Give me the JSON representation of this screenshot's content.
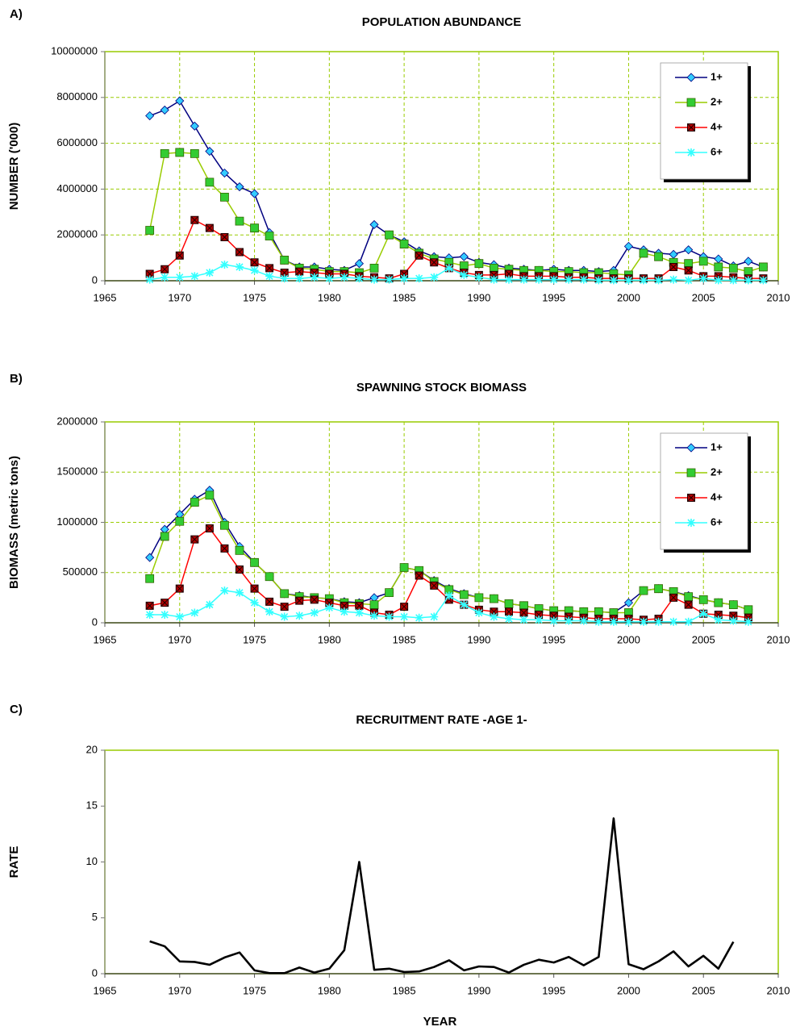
{
  "chart_data": [
    {
      "type": "line",
      "panel_label": "A)",
      "title": "POPULATION ABUNDANCE",
      "y_label": "NUMBER ('000)",
      "x": [
        1968,
        1969,
        1970,
        1971,
        1972,
        1973,
        1974,
        1975,
        1976,
        1977,
        1978,
        1979,
        1980,
        1981,
        1982,
        1983,
        1984,
        1985,
        1986,
        1987,
        1988,
        1989,
        1990,
        1991,
        1992,
        1993,
        1994,
        1995,
        1996,
        1997,
        1998,
        1999,
        2000,
        2001,
        2002,
        2003,
        2004,
        2005,
        2006,
        2007,
        2008,
        2009
      ],
      "xlim": [
        1965,
        2010
      ],
      "xticks": [
        1965,
        1970,
        1975,
        1980,
        1985,
        1990,
        1995,
        2000,
        2005,
        2010
      ],
      "ylim": [
        0,
        10000000
      ],
      "yticks": [
        0,
        2000000,
        4000000,
        6000000,
        8000000,
        10000000
      ],
      "grid": true,
      "legend": "upper right",
      "series": [
        {
          "name": "1+",
          "color": "#000080",
          "marker": "diamond",
          "marker_color": "#33ccff",
          "values": [
            7200000,
            7450000,
            7850000,
            6750000,
            5650000,
            4700000,
            4100000,
            3800000,
            2100000,
            900000,
            600000,
            600000,
            500000,
            450000,
            750000,
            2450000,
            2000000,
            1700000,
            1300000,
            1050000,
            1000000,
            1050000,
            800000,
            700000,
            550000,
            500000,
            450000,
            500000,
            450000,
            450000,
            400000,
            450000,
            1500000,
            1350000,
            1200000,
            1150000,
            1350000,
            1050000,
            950000,
            650000,
            850000,
            600000
          ]
        },
        {
          "name": "2+",
          "color": "#99cc00",
          "marker": "square",
          "marker_color": "#33cc33",
          "values": [
            2200000,
            5550000,
            5600000,
            5550000,
            4300000,
            3650000,
            2600000,
            2300000,
            1950000,
            900000,
            550000,
            500000,
            400000,
            400000,
            350000,
            550000,
            2000000,
            1600000,
            1200000,
            950000,
            800000,
            650000,
            750000,
            550000,
            500000,
            450000,
            450000,
            400000,
            400000,
            350000,
            350000,
            300000,
            250000,
            1200000,
            1050000,
            800000,
            750000,
            850000,
            600000,
            550000,
            400000,
            600000
          ]
        },
        {
          "name": "4+",
          "color": "#ff0000",
          "marker": "star",
          "marker_color": "#b30000",
          "values": [
            300000,
            500000,
            1100000,
            2650000,
            2300000,
            1900000,
            1250000,
            800000,
            550000,
            350000,
            400000,
            350000,
            300000,
            300000,
            200000,
            150000,
            100000,
            300000,
            1100000,
            800000,
            550000,
            350000,
            250000,
            250000,
            300000,
            200000,
            200000,
            200000,
            150000,
            150000,
            100000,
            100000,
            100000,
            100000,
            100000,
            600000,
            450000,
            200000,
            200000,
            150000,
            100000,
            100000
          ]
        },
        {
          "name": "6+",
          "color": "#33ffff",
          "marker": "asterisk",
          "marker_color": "#33ffff",
          "values": [
            50000,
            150000,
            150000,
            200000,
            350000,
            700000,
            600000,
            450000,
            200000,
            100000,
            100000,
            150000,
            100000,
            150000,
            100000,
            50000,
            50000,
            100000,
            100000,
            150000,
            550000,
            250000,
            150000,
            50000,
            50000,
            50000,
            50000,
            50000,
            50000,
            50000,
            20000,
            20000,
            20000,
            20000,
            20000,
            50000,
            20000,
            100000,
            20000,
            20000,
            20000,
            20000
          ]
        }
      ]
    },
    {
      "type": "line",
      "panel_label": "B)",
      "title": "SPAWNING STOCK BIOMASS",
      "y_label": "BIOMASS (metric tons)",
      "x": [
        1968,
        1969,
        1970,
        1971,
        1972,
        1973,
        1974,
        1975,
        1976,
        1977,
        1978,
        1979,
        1980,
        1981,
        1982,
        1983,
        1984,
        1985,
        1986,
        1987,
        1988,
        1989,
        1990,
        1991,
        1992,
        1993,
        1994,
        1995,
        1996,
        1997,
        1998,
        1999,
        2000,
        2001,
        2002,
        2003,
        2004,
        2005,
        2006,
        2007,
        2008
      ],
      "xlim": [
        1965,
        2010
      ],
      "xticks": [
        1965,
        1970,
        1975,
        1980,
        1985,
        1990,
        1995,
        2000,
        2005,
        2010
      ],
      "ylim": [
        0,
        2000000
      ],
      "yticks": [
        0,
        500000,
        1000000,
        1500000,
        2000000
      ],
      "grid": true,
      "legend": "upper right",
      "series": [
        {
          "name": "1+",
          "color": "#000080",
          "marker": "diamond",
          "marker_color": "#33ccff",
          "values": [
            650000,
            930000,
            1080000,
            1230000,
            1320000,
            1000000,
            760000,
            600000,
            460000,
            290000,
            270000,
            250000,
            240000,
            210000,
            200000,
            250000,
            300000,
            550000,
            520000,
            420000,
            340000,
            290000,
            250000,
            240000,
            190000,
            170000,
            140000,
            120000,
            120000,
            110000,
            110000,
            100000,
            200000,
            320000,
            340000,
            310000,
            270000,
            230000,
            200000,
            180000,
            130000
          ]
        },
        {
          "name": "2+",
          "color": "#99cc00",
          "marker": "square",
          "marker_color": "#33cc33",
          "values": [
            440000,
            860000,
            1010000,
            1200000,
            1270000,
            970000,
            720000,
            600000,
            460000,
            290000,
            260000,
            250000,
            240000,
            200000,
            190000,
            180000,
            300000,
            550000,
            520000,
            410000,
            330000,
            280000,
            250000,
            240000,
            190000,
            170000,
            140000,
            120000,
            120000,
            110000,
            110000,
            100000,
            100000,
            320000,
            340000,
            310000,
            260000,
            230000,
            200000,
            180000,
            130000
          ]
        },
        {
          "name": "4+",
          "color": "#ff0000",
          "marker": "star",
          "marker_color": "#b30000",
          "values": [
            170000,
            200000,
            340000,
            830000,
            940000,
            740000,
            530000,
            340000,
            210000,
            160000,
            220000,
            230000,
            200000,
            170000,
            170000,
            100000,
            80000,
            160000,
            470000,
            370000,
            230000,
            180000,
            130000,
            110000,
            110000,
            100000,
            80000,
            70000,
            60000,
            50000,
            40000,
            40000,
            40000,
            30000,
            40000,
            250000,
            180000,
            90000,
            80000,
            70000,
            50000
          ]
        },
        {
          "name": "6+",
          "color": "#33ffff",
          "marker": "asterisk",
          "marker_color": "#33ffff",
          "values": [
            80000,
            80000,
            60000,
            100000,
            180000,
            320000,
            300000,
            200000,
            110000,
            60000,
            70000,
            100000,
            150000,
            110000,
            100000,
            70000,
            60000,
            60000,
            50000,
            60000,
            270000,
            180000,
            100000,
            60000,
            40000,
            30000,
            30000,
            20000,
            20000,
            20000,
            10000,
            10000,
            10000,
            10000,
            10000,
            10000,
            10000,
            90000,
            30000,
            20000,
            10000
          ]
        }
      ]
    },
    {
      "type": "line",
      "panel_label": "C)",
      "title": "RECRUITMENT RATE  -AGE 1-",
      "y_label": "RATE",
      "x_label": "YEAR",
      "x": [
        1968,
        1969,
        1970,
        1971,
        1972,
        1973,
        1974,
        1975,
        1976,
        1977,
        1978,
        1979,
        1980,
        1981,
        1982,
        1983,
        1984,
        1985,
        1986,
        1987,
        1988,
        1989,
        1990,
        1991,
        1992,
        1993,
        1994,
        1995,
        1996,
        1997,
        1998,
        1999,
        2000,
        2001,
        2002,
        2003,
        2004,
        2005,
        2006,
        2007
      ],
      "xlim": [
        1965,
        2010
      ],
      "xticks": [
        1965,
        1970,
        1975,
        1980,
        1985,
        1990,
        1995,
        2000,
        2005,
        2010
      ],
      "ylim": [
        0,
        20
      ],
      "yticks": [
        0,
        5,
        10,
        15,
        20
      ],
      "grid": false,
      "color": "#000000",
      "values": [
        2.9,
        2.45,
        1.1,
        1.05,
        0.8,
        1.45,
        1.9,
        0.3,
        0.05,
        0.05,
        0.55,
        0.1,
        0.45,
        2.1,
        10,
        0.35,
        0.45,
        0.15,
        0.2,
        0.6,
        1.2,
        0.3,
        0.65,
        0.6,
        0.1,
        0.8,
        1.25,
        1.0,
        1.5,
        0.75,
        1.5,
        13.9,
        0.85,
        0.4,
        1.1,
        2.0,
        0.65,
        1.6,
        0.45,
        2.85
      ]
    }
  ]
}
